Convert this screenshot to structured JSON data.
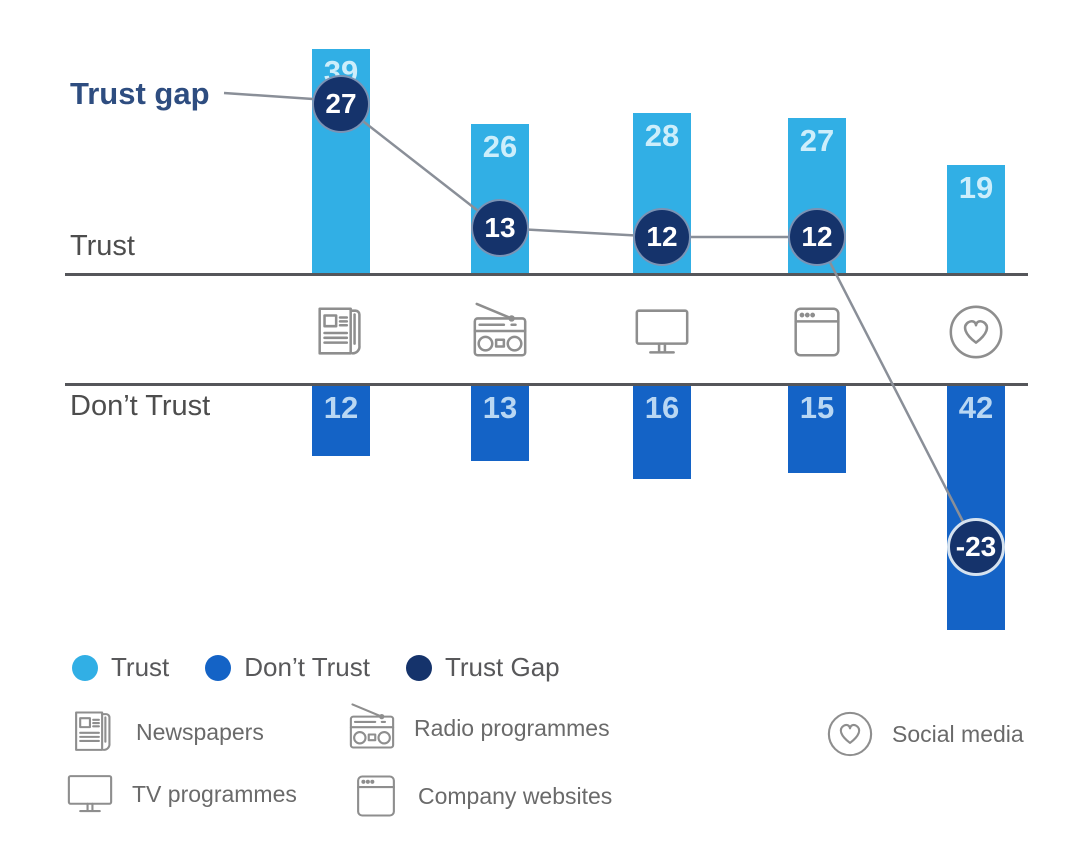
{
  "chart_data": {
    "type": "bar",
    "subtype": "diverging-bars-with-gap-line",
    "categories": [
      "Newspapers",
      "Radio programmes",
      "TV programmes",
      "Company websites",
      "Social media"
    ],
    "series": [
      {
        "name": "Trust",
        "values": [
          39,
          26,
          28,
          27,
          19
        ]
      },
      {
        "name": "Don’t Trust",
        "values": [
          12,
          13,
          16,
          15,
          42
        ]
      },
      {
        "name": "Trust Gap",
        "values": [
          27,
          13,
          12,
          12,
          -23
        ]
      }
    ],
    "axis_labels": {
      "trust_gap": "Trust gap",
      "trust": "Trust",
      "dont_trust": "Don’t Trust"
    },
    "legend": [
      {
        "label": "Trust",
        "series": "trust"
      },
      {
        "label": "Don’t Trust",
        "series": "dont_trust"
      },
      {
        "label": "Trust Gap",
        "series": "trust_gap"
      }
    ],
    "icon_legend": [
      {
        "icon": "newspaper-icon",
        "label": "Newspapers"
      },
      {
        "icon": "radio-icon",
        "label": "Radio programmes"
      },
      {
        "icon": "tv-icon",
        "label": "TV programmes"
      },
      {
        "icon": "browser-icon",
        "label": "Company websites"
      },
      {
        "icon": "heart-circle-icon",
        "label": "Social media"
      }
    ],
    "colors": {
      "trust": "#31AFE5",
      "dont_trust": "#1463C6",
      "trust_gap": "#15336B",
      "axis": "#55565A",
      "connector": "#8A8F98",
      "icon_gray": "#8E8E8E"
    },
    "layout": {
      "grid": false,
      "legend_position": "bottom-left",
      "baseline_values": "percent"
    }
  }
}
